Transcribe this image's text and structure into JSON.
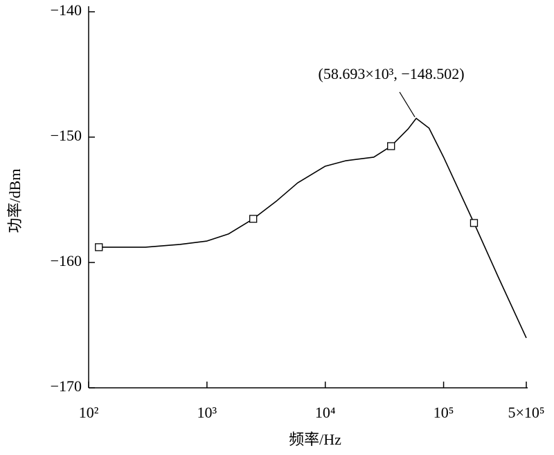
{
  "chart_data": {
    "type": "line",
    "xlabel": "频率/Hz",
    "ylabel": "功率/dBm",
    "xscale": "log",
    "xlim": [
      100,
      500000
    ],
    "ylim": [
      -170,
      -140
    ],
    "xticks": [
      {
        "value": 100,
        "label": "10²"
      },
      {
        "value": 1000,
        "label": "10³"
      },
      {
        "value": 10000,
        "label": "10⁴"
      },
      {
        "value": 100000,
        "label": "10⁵"
      },
      {
        "value": 500000,
        "label": "5×10⁵"
      }
    ],
    "yticks": [
      {
        "value": -140,
        "label": "−140"
      },
      {
        "value": -150,
        "label": "−150"
      },
      {
        "value": -160,
        "label": "−160"
      },
      {
        "value": -170,
        "label": "−170"
      }
    ],
    "color": "#000000",
    "x": [
      117.5,
      302,
      591,
      1000,
      1517,
      2460,
      3890,
      5840,
      10000,
      14960,
      25700,
      35970,
      50200,
      58693,
      75300,
      100000,
      180700,
      289700,
      500000
    ],
    "values": [
      -158.78,
      -158.78,
      -158.56,
      -158.29,
      -157.73,
      -156.52,
      -155.08,
      -153.65,
      -152.32,
      -151.88,
      -151.6,
      -150.72,
      -149.34,
      -148.502,
      -149.28,
      -151.6,
      -156.85,
      -161.16,
      -166.02
    ],
    "markers": {
      "x": [
        122,
        2460,
        35970,
        180700
      ],
      "y": [
        -158.78,
        -156.52,
        -150.72,
        -156.85
      ]
    },
    "annotation": {
      "text": "(58.693×10³, −148.502)",
      "x": 58693,
      "y": -148.502
    }
  }
}
